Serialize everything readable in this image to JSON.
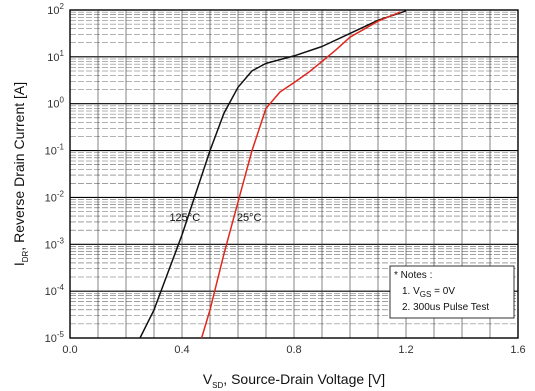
{
  "chart_data": {
    "type": "line",
    "xlabel_symbol": "V",
    "xlabel_sub": "SD",
    "xlabel_text": ", Source-Drain Voltage [V]",
    "ylabel_symbol": "I",
    "ylabel_sub": "DR",
    "ylabel_text": ", Reverse Drain Current [A]",
    "xlim": [
      0.0,
      1.6
    ],
    "ylim_log10": [
      -5,
      2
    ],
    "x_ticks": [
      "0.0",
      "0.4",
      "0.8",
      "1.2",
      "1.6"
    ],
    "y_tick_exponents": [
      "2",
      "1",
      "0",
      "-1",
      "-2",
      "-3",
      "-4",
      "-5"
    ],
    "y_tick_base": "10",
    "grid": true,
    "scale_y": "log",
    "series": [
      {
        "name": "125°C",
        "color": "#111111",
        "points": [
          [
            0.25,
            -5.0
          ],
          [
            0.3,
            -4.4
          ],
          [
            0.35,
            -3.6
          ],
          [
            0.4,
            -2.8
          ],
          [
            0.45,
            -1.9
          ],
          [
            0.5,
            -1.0
          ],
          [
            0.55,
            -0.2
          ],
          [
            0.6,
            0.35
          ],
          [
            0.65,
            0.7
          ],
          [
            0.7,
            0.86
          ],
          [
            0.8,
            1.02
          ],
          [
            0.9,
            1.22
          ],
          [
            1.0,
            1.5
          ],
          [
            1.1,
            1.78
          ],
          [
            1.2,
            1.98
          ]
        ]
      },
      {
        "name": "25°C",
        "color": "#e0281e",
        "points": [
          [
            0.47,
            -5.0
          ],
          [
            0.5,
            -4.4
          ],
          [
            0.55,
            -3.2
          ],
          [
            0.6,
            -2.1
          ],
          [
            0.65,
            -1.0
          ],
          [
            0.7,
            -0.1
          ],
          [
            0.75,
            0.25
          ],
          [
            0.8,
            0.45
          ],
          [
            0.85,
            0.66
          ],
          [
            0.9,
            0.9
          ],
          [
            0.95,
            1.15
          ],
          [
            1.0,
            1.42
          ],
          [
            1.1,
            1.76
          ],
          [
            1.18,
            1.96
          ]
        ]
      }
    ],
    "annotations": [
      {
        "text": "125°C",
        "x": 0.41,
        "y": -2.5
      },
      {
        "text": "25°C",
        "x": 0.64,
        "y": -2.5
      }
    ],
    "notes_box": {
      "title": "* Notes :",
      "line1_pre": "1. V",
      "line1_sub": "GS",
      "line1_post": " = 0V",
      "line2": "2. 300us Pulse Test"
    }
  }
}
